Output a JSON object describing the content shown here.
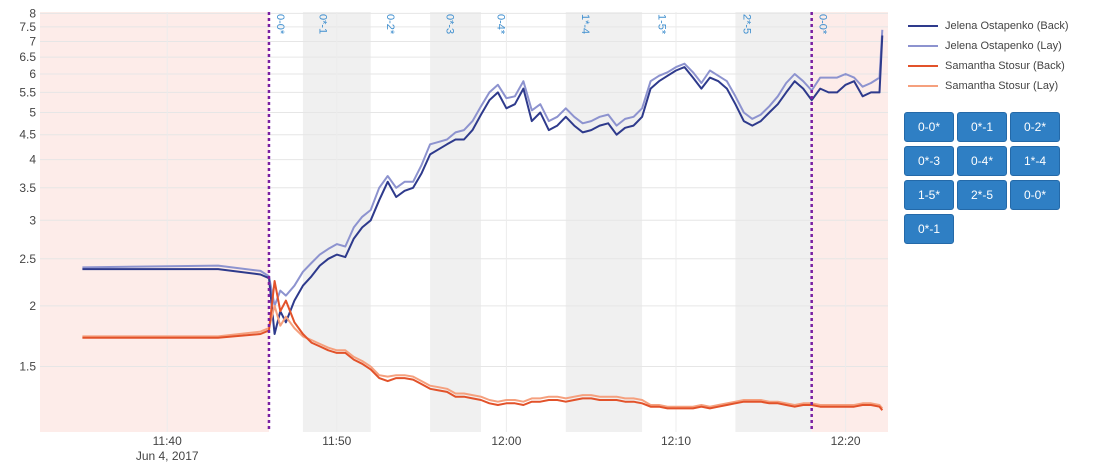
{
  "chart_data": {
    "type": "line",
    "y_scale": "log",
    "ylim": [
      1.1,
      8.05
    ],
    "y_ticks": [
      "1.5",
      "2",
      "2.5",
      "3",
      "3.5",
      "4",
      "4.5",
      "5",
      "5.5",
      "6",
      "6.5",
      "7",
      "7.5",
      "8"
    ],
    "x_ticks": [
      {
        "time": "11:40",
        "sub": "Jun 4, 2017"
      },
      {
        "time": "11:50",
        "sub": ""
      },
      {
        "time": "12:00",
        "sub": ""
      },
      {
        "time": "12:10",
        "sub": ""
      },
      {
        "time": "12:20",
        "sub": ""
      }
    ],
    "xlim": [
      "11:32:30",
      "12:22:30"
    ],
    "grid": true,
    "legend_position": "right",
    "colors": {
      "pre_post_shade": "#fdece9",
      "set_shade": "#f0f0f0",
      "set_marker": "#7a1fa2",
      "game_label": "#3f8fcf"
    },
    "shaded_regions": [
      {
        "from": "11:32:30",
        "to": "11:46:00",
        "kind": "pre"
      },
      {
        "from": "11:48:00",
        "to": "11:52:00",
        "kind": "set"
      },
      {
        "from": "11:55:30",
        "to": "11:58:30",
        "kind": "set"
      },
      {
        "from": "12:03:30",
        "to": "12:08:00",
        "kind": "set"
      },
      {
        "from": "12:13:30",
        "to": "12:18:00",
        "kind": "set"
      },
      {
        "from": "12:18:00",
        "to": "12:22:30",
        "kind": "post"
      }
    ],
    "set_markers": [
      "11:46:00",
      "12:18:00"
    ],
    "game_labels": [
      {
        "time": "11:46:00",
        "label": "0-0*"
      },
      {
        "time": "11:48:30",
        "label": "0*-1"
      },
      {
        "time": "11:52:30",
        "label": "0-2*"
      },
      {
        "time": "11:56:00",
        "label": "0*-3"
      },
      {
        "time": "11:59:00",
        "label": "0-4*"
      },
      {
        "time": "12:04:00",
        "label": "1*-4"
      },
      {
        "time": "12:08:30",
        "label": "1-5*"
      },
      {
        "time": "12:13:30",
        "label": "2*-5"
      },
      {
        "time": "12:18:00",
        "label": "0-0*"
      }
    ],
    "series": [
      {
        "name": "Jelena Ostapenko (Back)",
        "color": "#2e3a8c",
        "x": [
          "11:35:00",
          "11:43:00",
          "11:45:30",
          "11:46:00",
          "11:46:20",
          "11:46:40",
          "11:47:00",
          "11:47:30",
          "11:48:00",
          "11:48:30",
          "11:49:00",
          "11:49:30",
          "11:50:00",
          "11:50:30",
          "11:51:00",
          "11:51:30",
          "11:52:00",
          "11:52:30",
          "11:53:00",
          "11:53:30",
          "11:54:00",
          "11:54:30",
          "11:55:00",
          "11:55:30",
          "11:56:00",
          "11:56:30",
          "11:57:00",
          "11:57:30",
          "11:58:00",
          "11:58:30",
          "11:59:00",
          "11:59:30",
          "12:00:00",
          "12:00:30",
          "12:01:00",
          "12:01:30",
          "12:02:00",
          "12:02:30",
          "12:03:00",
          "12:03:30",
          "12:04:00",
          "12:04:30",
          "12:05:00",
          "12:05:30",
          "12:06:00",
          "12:06:30",
          "12:07:00",
          "12:07:30",
          "12:08:00",
          "12:08:30",
          "12:09:00",
          "12:09:30",
          "12:10:00",
          "12:10:30",
          "12:11:00",
          "12:11:30",
          "12:12:00",
          "12:12:30",
          "12:13:00",
          "12:13:30",
          "12:14:00",
          "12:14:30",
          "12:15:00",
          "12:15:30",
          "12:16:00",
          "12:16:30",
          "12:17:00",
          "12:17:30",
          "12:18:00",
          "12:18:30",
          "12:19:00",
          "12:19:30",
          "12:20:00",
          "12:20:30",
          "12:21:00",
          "12:21:30",
          "12:22:00",
          "12:22:10"
        ],
        "values": [
          2.38,
          2.38,
          2.32,
          2.28,
          1.75,
          1.95,
          1.85,
          2.05,
          2.2,
          2.3,
          2.42,
          2.5,
          2.55,
          2.52,
          2.75,
          2.9,
          3.0,
          3.3,
          3.6,
          3.35,
          3.45,
          3.5,
          3.75,
          4.1,
          4.2,
          4.3,
          4.4,
          4.4,
          4.6,
          4.95,
          5.3,
          5.5,
          5.1,
          5.2,
          5.6,
          4.8,
          5.0,
          4.6,
          4.7,
          4.9,
          4.7,
          4.55,
          4.6,
          4.7,
          4.75,
          4.5,
          4.65,
          4.7,
          4.9,
          5.6,
          5.8,
          5.95,
          6.1,
          6.2,
          5.9,
          5.6,
          5.9,
          5.8,
          5.6,
          5.2,
          4.8,
          4.7,
          4.8,
          5.0,
          5.2,
          5.5,
          5.8,
          5.6,
          5.3,
          5.6,
          5.5,
          5.5,
          5.7,
          5.8,
          5.4,
          5.5,
          5.5,
          7.2
        ]
      },
      {
        "name": "Jelena Ostapenko (Lay)",
        "color": "#8d93cf",
        "x": [
          "11:35:00",
          "11:43:00",
          "11:45:30",
          "11:46:00",
          "11:46:20",
          "11:46:40",
          "11:47:00",
          "11:47:30",
          "11:48:00",
          "11:48:30",
          "11:49:00",
          "11:49:30",
          "11:50:00",
          "11:50:30",
          "11:51:00",
          "11:51:30",
          "11:52:00",
          "11:52:30",
          "11:53:00",
          "11:53:30",
          "11:54:00",
          "11:54:30",
          "11:55:00",
          "11:55:30",
          "11:56:00",
          "11:56:30",
          "11:57:00",
          "11:57:30",
          "11:58:00",
          "11:58:30",
          "11:59:00",
          "11:59:30",
          "12:00:00",
          "12:00:30",
          "12:01:00",
          "12:01:30",
          "12:02:00",
          "12:02:30",
          "12:03:00",
          "12:03:30",
          "12:04:00",
          "12:04:30",
          "12:05:00",
          "12:05:30",
          "12:06:00",
          "12:06:30",
          "12:07:00",
          "12:07:30",
          "12:08:00",
          "12:08:30",
          "12:09:00",
          "12:09:30",
          "12:10:00",
          "12:10:30",
          "12:11:00",
          "12:11:30",
          "12:12:00",
          "12:12:30",
          "12:13:00",
          "12:13:30",
          "12:14:00",
          "12:14:30",
          "12:15:00",
          "12:15:30",
          "12:16:00",
          "12:16:30",
          "12:17:00",
          "12:17:30",
          "12:18:00",
          "12:18:30",
          "12:19:00",
          "12:19:30",
          "12:20:00",
          "12:20:30",
          "12:21:00",
          "12:21:30",
          "12:22:00",
          "12:22:10"
        ],
        "values": [
          2.4,
          2.42,
          2.36,
          2.3,
          2.0,
          2.15,
          2.1,
          2.2,
          2.35,
          2.45,
          2.55,
          2.62,
          2.68,
          2.65,
          2.9,
          3.05,
          3.15,
          3.5,
          3.7,
          3.5,
          3.6,
          3.6,
          3.9,
          4.3,
          4.35,
          4.4,
          4.55,
          4.6,
          4.8,
          5.15,
          5.5,
          5.7,
          5.35,
          5.4,
          5.8,
          5.05,
          5.2,
          4.8,
          4.9,
          5.1,
          4.9,
          4.75,
          4.8,
          4.9,
          4.95,
          4.7,
          4.85,
          4.9,
          5.1,
          5.8,
          5.95,
          6.05,
          6.2,
          6.3,
          6.05,
          5.75,
          6.1,
          5.95,
          5.8,
          5.4,
          5.0,
          4.85,
          4.95,
          5.15,
          5.4,
          5.75,
          6.0,
          5.8,
          5.55,
          5.9,
          5.9,
          5.9,
          6.0,
          5.9,
          5.65,
          5.75,
          5.9,
          7.4
        ]
      },
      {
        "name": "Samantha Stosur (Back)",
        "color": "#e2522a",
        "x": [
          "11:35:00",
          "11:43:00",
          "11:45:30",
          "11:46:00",
          "11:46:20",
          "11:46:40",
          "11:47:00",
          "11:47:30",
          "11:48:00",
          "11:48:30",
          "11:49:00",
          "11:49:30",
          "11:50:00",
          "11:50:30",
          "11:51:00",
          "11:51:30",
          "11:52:00",
          "11:52:30",
          "11:53:00",
          "11:53:30",
          "11:54:00",
          "11:54:30",
          "11:55:00",
          "11:55:30",
          "11:56:00",
          "11:56:30",
          "11:57:00",
          "11:57:30",
          "11:58:00",
          "11:58:30",
          "11:59:00",
          "11:59:30",
          "12:00:00",
          "12:00:30",
          "12:01:00",
          "12:01:30",
          "12:02:00",
          "12:02:30",
          "12:03:00",
          "12:03:30",
          "12:04:00",
          "12:04:30",
          "12:05:00",
          "12:05:30",
          "12:06:00",
          "12:06:30",
          "12:07:00",
          "12:07:30",
          "12:08:00",
          "12:08:30",
          "12:09:00",
          "12:09:30",
          "12:10:00",
          "12:10:30",
          "12:11:00",
          "12:11:30",
          "12:12:00",
          "12:12:30",
          "12:13:00",
          "12:13:30",
          "12:14:00",
          "12:14:30",
          "12:15:00",
          "12:15:30",
          "12:16:00",
          "12:16:30",
          "12:17:00",
          "12:17:30",
          "12:18:00",
          "12:18:30",
          "12:19:00",
          "12:19:30",
          "12:20:00",
          "12:20:30",
          "12:21:00",
          "12:21:30",
          "12:22:00",
          "12:22:10"
        ],
        "values": [
          1.72,
          1.72,
          1.75,
          1.78,
          2.25,
          1.95,
          2.05,
          1.85,
          1.75,
          1.68,
          1.65,
          1.62,
          1.6,
          1.6,
          1.55,
          1.52,
          1.48,
          1.42,
          1.4,
          1.42,
          1.42,
          1.41,
          1.38,
          1.35,
          1.34,
          1.33,
          1.3,
          1.3,
          1.29,
          1.28,
          1.26,
          1.25,
          1.26,
          1.26,
          1.25,
          1.27,
          1.27,
          1.28,
          1.28,
          1.27,
          1.28,
          1.29,
          1.29,
          1.28,
          1.28,
          1.28,
          1.27,
          1.27,
          1.26,
          1.24,
          1.24,
          1.23,
          1.23,
          1.23,
          1.23,
          1.24,
          1.23,
          1.24,
          1.25,
          1.26,
          1.27,
          1.27,
          1.27,
          1.26,
          1.26,
          1.25,
          1.24,
          1.25,
          1.25,
          1.24,
          1.24,
          1.24,
          1.24,
          1.24,
          1.25,
          1.25,
          1.24,
          1.22
        ]
      },
      {
        "name": "Samantha Stosur (Lay)",
        "color": "#f5a07e",
        "x": [
          "11:35:00",
          "11:43:00",
          "11:45:30",
          "11:46:00",
          "11:46:20",
          "11:46:40",
          "11:47:00",
          "11:47:30",
          "11:48:00",
          "11:48:30",
          "11:49:00",
          "11:49:30",
          "11:50:00",
          "11:50:30",
          "11:51:00",
          "11:51:30",
          "11:52:00",
          "11:52:30",
          "11:53:00",
          "11:53:30",
          "11:54:00",
          "11:54:30",
          "11:55:00",
          "11:55:30",
          "11:56:00",
          "11:56:30",
          "11:57:00",
          "11:57:30",
          "11:58:00",
          "11:58:30",
          "11:59:00",
          "11:59:30",
          "12:00:00",
          "12:00:30",
          "12:01:00",
          "12:01:30",
          "12:02:00",
          "12:02:30",
          "12:03:00",
          "12:03:30",
          "12:04:00",
          "12:04:30",
          "12:05:00",
          "12:05:30",
          "12:06:00",
          "12:06:30",
          "12:07:00",
          "12:07:30",
          "12:08:00",
          "12:08:30",
          "12:09:00",
          "12:09:30",
          "12:10:00",
          "12:10:30",
          "12:11:00",
          "12:11:30",
          "12:12:00",
          "12:12:30",
          "12:13:00",
          "12:13:30",
          "12:14:00",
          "12:14:30",
          "12:15:00",
          "12:15:30",
          "12:16:00",
          "12:16:30",
          "12:17:00",
          "12:17:30",
          "12:18:00",
          "12:18:30",
          "12:19:00",
          "12:19:30",
          "12:20:00",
          "12:20:30",
          "12:21:00",
          "12:21:30",
          "12:22:00",
          "12:22:10"
        ],
        "values": [
          1.73,
          1.73,
          1.77,
          1.8,
          2.0,
          1.82,
          1.9,
          1.8,
          1.73,
          1.7,
          1.67,
          1.64,
          1.62,
          1.62,
          1.57,
          1.54,
          1.5,
          1.44,
          1.43,
          1.44,
          1.44,
          1.43,
          1.4,
          1.37,
          1.36,
          1.35,
          1.32,
          1.32,
          1.31,
          1.3,
          1.28,
          1.27,
          1.28,
          1.28,
          1.27,
          1.29,
          1.29,
          1.3,
          1.3,
          1.29,
          1.3,
          1.31,
          1.31,
          1.3,
          1.3,
          1.3,
          1.29,
          1.29,
          1.28,
          1.25,
          1.25,
          1.24,
          1.24,
          1.24,
          1.24,
          1.25,
          1.24,
          1.25,
          1.26,
          1.27,
          1.28,
          1.28,
          1.28,
          1.27,
          1.27,
          1.26,
          1.25,
          1.26,
          1.26,
          1.25,
          1.25,
          1.25,
          1.25,
          1.25,
          1.26,
          1.26,
          1.25,
          1.23
        ]
      }
    ]
  },
  "buttons": [
    {
      "label": "0-0*"
    },
    {
      "label": "0*-1"
    },
    {
      "label": "0-2*"
    },
    {
      "label": "0*-3"
    },
    {
      "label": "0-4*"
    },
    {
      "label": "1*-4"
    },
    {
      "label": "1-5*"
    },
    {
      "label": "2*-5"
    },
    {
      "label": "0-0*"
    },
    {
      "label": "0*-1"
    }
  ]
}
